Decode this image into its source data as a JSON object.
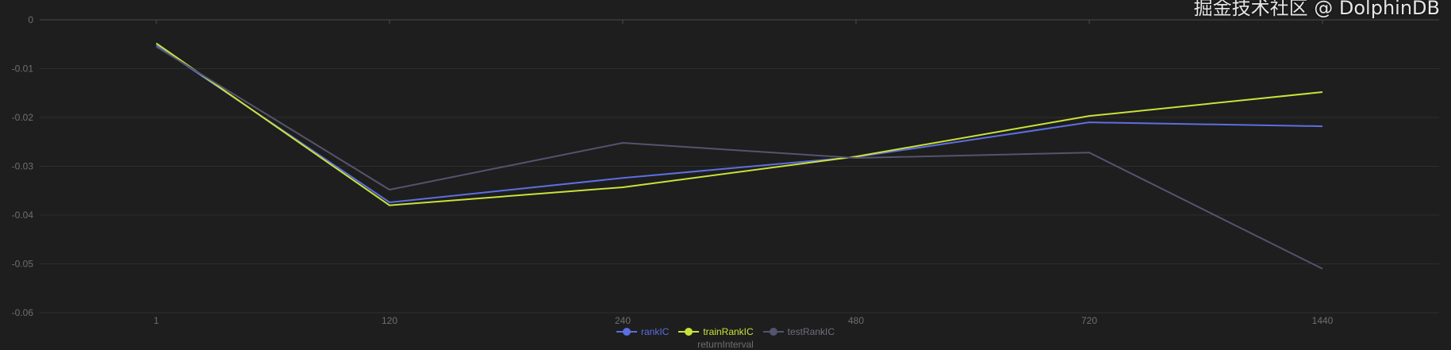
{
  "chart_data": {
    "type": "line",
    "title": "",
    "xlabel": "returnInterval",
    "ylabel": "",
    "categories": [
      "1",
      "120",
      "240",
      "480",
      "720",
      "1440"
    ],
    "ylim": [
      -0.06,
      0
    ],
    "yticks": [
      "0",
      "-0.01",
      "-0.02",
      "-0.03",
      "-0.04",
      "-0.05",
      "-0.06"
    ],
    "ytick_values": [
      0,
      -0.01,
      -0.02,
      -0.03,
      -0.04,
      -0.05,
      -0.06
    ],
    "grid": true,
    "legend_placement": "bottom-center",
    "series": [
      {
        "name": "rankIC",
        "color": "#5b6fe0",
        "values": [
          -0.0052,
          -0.0374,
          -0.0324,
          -0.0281,
          -0.021,
          -0.0218
        ]
      },
      {
        "name": "trainRankIC",
        "color": "#c9e23a",
        "values": [
          -0.0048,
          -0.038,
          -0.0343,
          -0.028,
          -0.0197,
          -0.0148
        ]
      },
      {
        "name": "testRankIC",
        "color": "#55546e",
        "values": [
          -0.0055,
          -0.0348,
          -0.0252,
          -0.0283,
          -0.0272,
          -0.051
        ]
      }
    ]
  },
  "watermark": "掘金技术社区 @ DolphinDB"
}
